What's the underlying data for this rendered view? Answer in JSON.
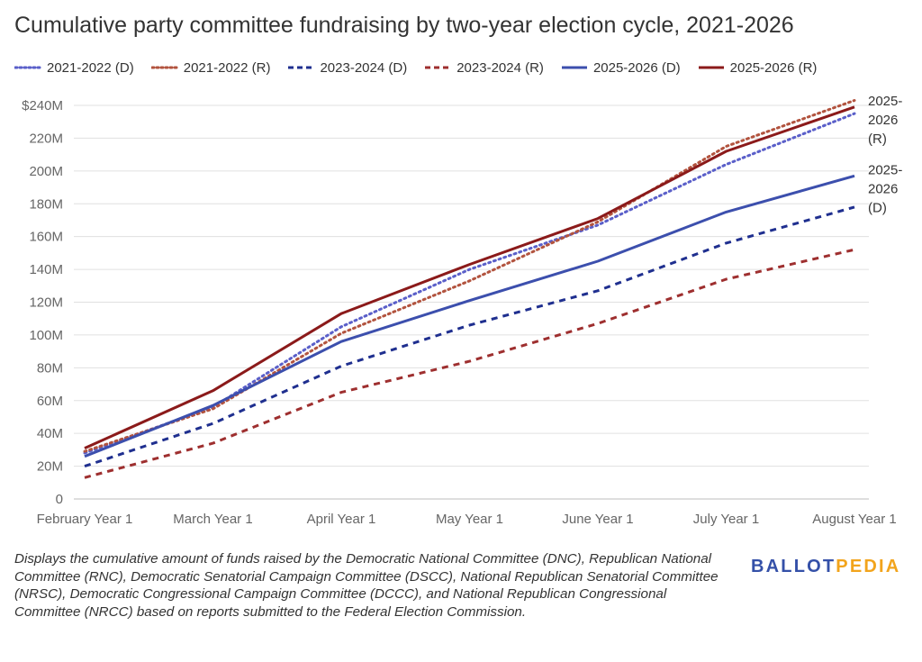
{
  "title": "Cumulative party committee fundraising by two-year election cycle, 2021-2026",
  "colors": {
    "dem_light": "#5a5fc9",
    "rep_light": "#b2533e",
    "dem_dark": "#1f2f8f",
    "rep_dark": "#9e2f2f",
    "dem": "#3c4fad",
    "rep": "#8b1a1a",
    "text": "#333333",
    "axis_text": "#666666",
    "grid": "#e0e0e0",
    "logo_ballot": "#3450a8",
    "logo_pedia": "#f2a41c"
  },
  "chart_data": {
    "type": "line",
    "title": "Cumulative party committee fundraising by two-year election cycle, 2021-2026",
    "categories": [
      "February Year 1",
      "March Year 1",
      "April Year 1",
      "May Year 1",
      "June Year 1",
      "July Year 1",
      "August Year 1"
    ],
    "ylim": [
      0,
      240
    ],
    "yticks": [
      "0",
      "20M",
      "40M",
      "60M",
      "80M",
      "100M",
      "120M",
      "140M",
      "160M",
      "180M",
      "200M",
      "220M",
      "$240M"
    ],
    "grid": true,
    "legend_position": "top",
    "series": [
      {
        "name": "2021-2022 (D)",
        "style": "dotted",
        "color": "#5a5fc9",
        "values": [
          28,
          56,
          105,
          140,
          167,
          204,
          235
        ]
      },
      {
        "name": "2021-2022 (R)",
        "style": "dotted",
        "color": "#b2533e",
        "values": [
          29,
          55,
          101,
          133,
          169,
          215,
          243
        ]
      },
      {
        "name": "2023-2024 (D)",
        "style": "dashed",
        "color": "#1f2f8f",
        "values": [
          20,
          46,
          81,
          106,
          127,
          156,
          178
        ]
      },
      {
        "name": "2023-2024 (R)",
        "style": "dashed",
        "color": "#9e2f2f",
        "values": [
          13,
          34,
          65,
          84,
          107,
          134,
          152
        ]
      },
      {
        "name": "2025-2026 (D)",
        "style": "solid",
        "color": "#3c4fad",
        "values": [
          26,
          57,
          96,
          121,
          145,
          175,
          197
        ]
      },
      {
        "name": "2025-2026 (R)",
        "style": "solid",
        "color": "#8b1a1a",
        "values": [
          31,
          66,
          113,
          143,
          171,
          212,
          239
        ]
      }
    ],
    "end_labels": [
      {
        "series": "2025-2026 (R)",
        "lines": [
          "2025-",
          "2026",
          "(R)"
        ]
      },
      {
        "series": "2025-2026 (D)",
        "lines": [
          "2025-",
          "2026",
          "(D)"
        ]
      }
    ]
  },
  "footnote": "Displays the cumulative amount of funds raised by the Democratic National Committee (DNC), Republican National Committee (RNC), Democratic Senatorial Campaign Committee (DSCC), National Republican Senatorial Committee (NRSC), Democratic Congressional Campaign Committee (DCCC), and National Republican Congressional Committee (NRCC) based on reports submitted to the Federal Election Commission.",
  "logo": {
    "part1": "BALLOT",
    "part2": "PEDIA"
  }
}
